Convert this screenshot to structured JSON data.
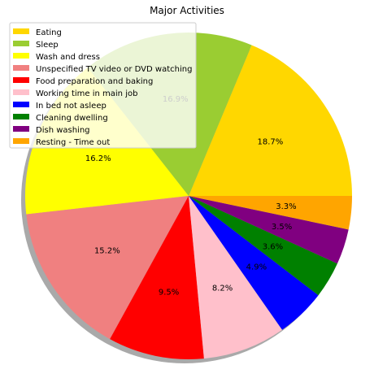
{
  "chart_data": {
    "type": "pie",
    "title": "Major Activities",
    "start_angle_deg": 0,
    "direction": "counterclockwise",
    "shadow": true,
    "legend_placement": "upper-left",
    "slices": [
      {
        "label": "Eating",
        "value": 18.7,
        "pct_label": "18.7%",
        "color": "#FFD700"
      },
      {
        "label": "Sleep",
        "value": 16.9,
        "pct_label": "16.9%",
        "color": "#9ACD32"
      },
      {
        "label": "Wash and dress",
        "value": 16.2,
        "pct_label": "16.2%",
        "color": "#FFFF00"
      },
      {
        "label": "Unspecified TV video or DVD watching",
        "value": 15.2,
        "pct_label": "15.2%",
        "color": "#F08080"
      },
      {
        "label": "Food preparation and baking",
        "value": 9.5,
        "pct_label": "9.5%",
        "color": "#FF0000"
      },
      {
        "label": "Working time in main job",
        "value": 8.2,
        "pct_label": "8.2%",
        "color": "#FFC0CB"
      },
      {
        "label": "In bed not asleep",
        "value": 4.9,
        "pct_label": "4.9%",
        "color": "#0000FF"
      },
      {
        "label": "Cleaning dwelling",
        "value": 3.6,
        "pct_label": "3.6%",
        "color": "#008000"
      },
      {
        "label": "Dish washing",
        "value": 3.5,
        "pct_label": "3.5%",
        "color": "#800080"
      },
      {
        "label": "Resting - Time out",
        "value": 3.3,
        "pct_label": "3.3%",
        "color": "#FFA500"
      }
    ]
  }
}
